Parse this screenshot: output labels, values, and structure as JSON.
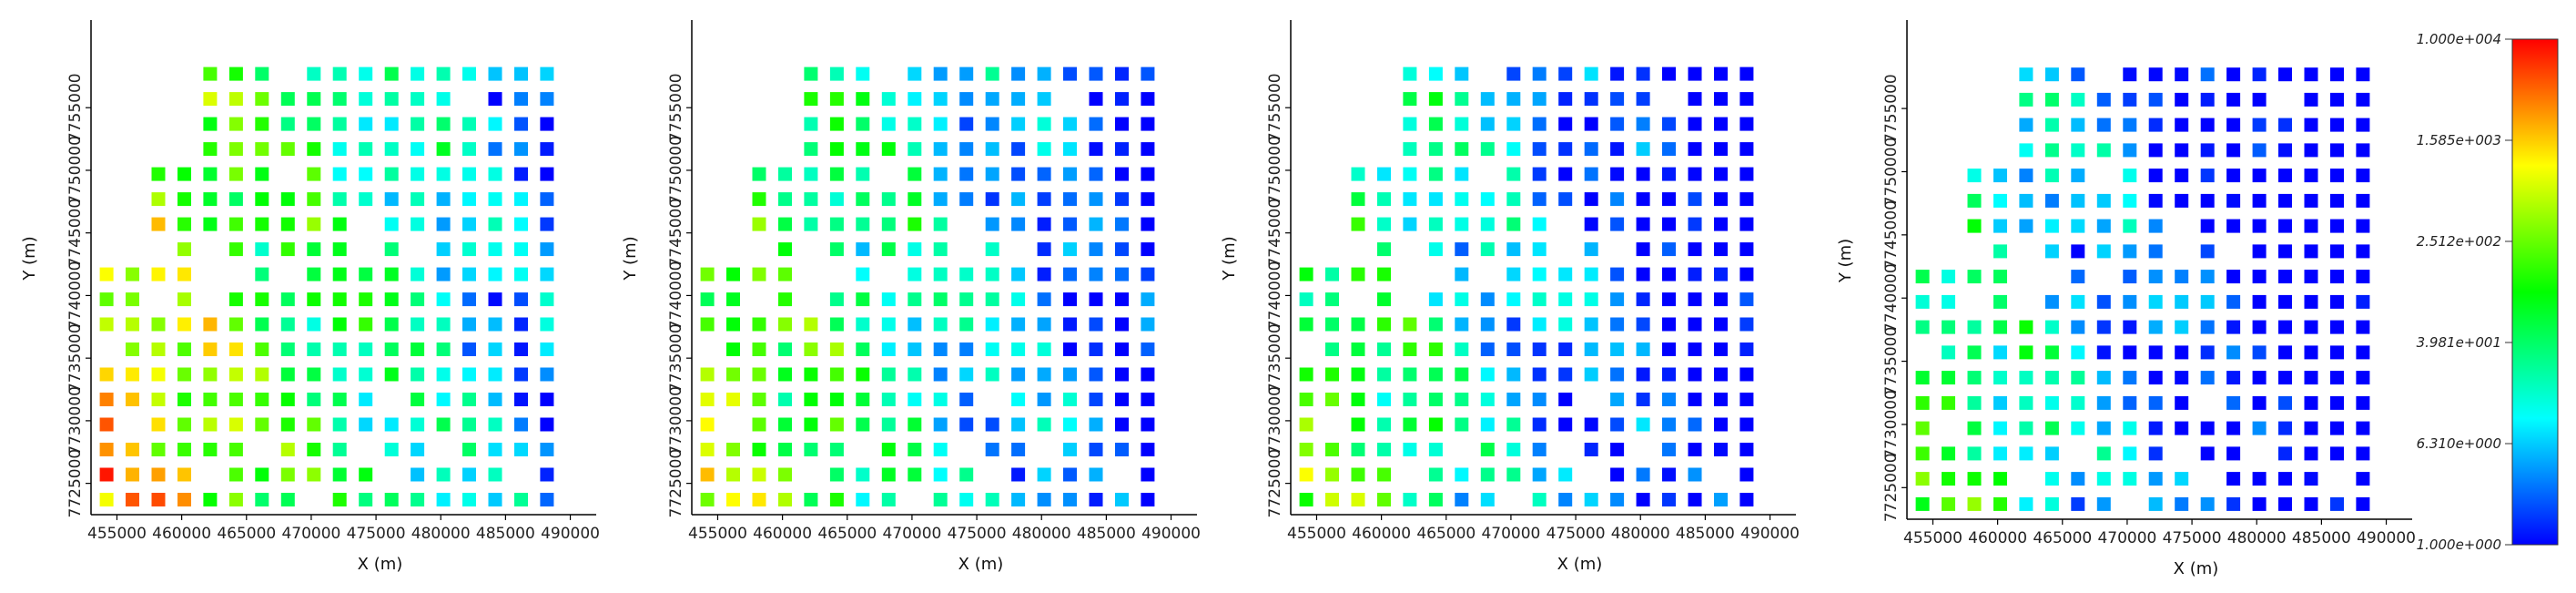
{
  "chart_data": {
    "type": "scatter",
    "xlabel": "X (m)",
    "ylabel": "Y (m)",
    "xlim": [
      453000,
      492000
    ],
    "ylim": [
      7722500,
      7762000
    ],
    "x_ticks": [
      455000,
      460000,
      465000,
      470000,
      475000,
      480000,
      485000,
      490000
    ],
    "y_ticks": [
      7725000,
      7730000,
      7735000,
      7740000,
      7745000,
      7750000,
      7755000
    ],
    "grid": false,
    "colorbar": {
      "scale": "log",
      "min": 1.0,
      "max": 10000.0,
      "tick_values": [
        10000,
        1585,
        251.2,
        39.81,
        6.31,
        1.0
      ],
      "tick_labels": [
        "1.000e+004",
        "1.585e+003",
        "2.512e+002",
        "3.981e+001",
        "6.310e+000",
        "1.000e+000"
      ],
      "colormap": [
        "#0000ff",
        "#00ffff",
        "#00ff00",
        "#ffff00",
        "#ff0000"
      ]
    },
    "panels": [
      {
        "id": "panel-1",
        "level_offset": 0.0
      },
      {
        "id": "panel-2",
        "level_offset": -0.55
      },
      {
        "id": "panel-3",
        "level_offset": -0.95
      },
      {
        "id": "panel-4",
        "level_offset": -1.25
      }
    ]
  }
}
